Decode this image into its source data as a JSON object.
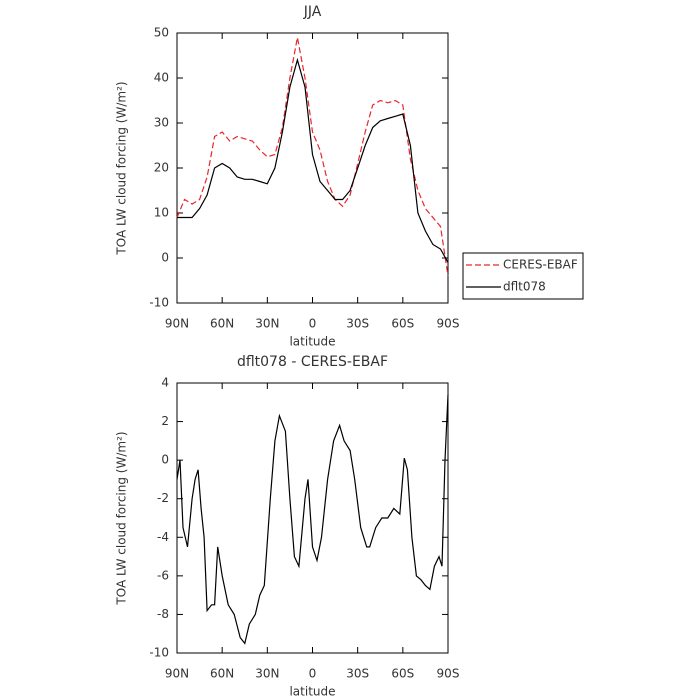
{
  "chart_data": [
    {
      "type": "line",
      "title": "JJA",
      "x_label": "latitude",
      "y_label": "TOA LW cloud forcing (W/m²)",
      "x": [
        90,
        85,
        80,
        75,
        70,
        65,
        60,
        55,
        50,
        45,
        40,
        35,
        30,
        25,
        20,
        15,
        10,
        5,
        0,
        -5,
        -10,
        -15,
        -20,
        -25,
        -30,
        -35,
        -40,
        -45,
        -50,
        -55,
        -60,
        -65,
        -70,
        -75,
        -80,
        -85,
        -90
      ],
      "series": [
        {
          "name": "CERES-EBAF",
          "color": "#e8262b",
          "dashed": true,
          "values": [
            9,
            13,
            12,
            13,
            18,
            27,
            28,
            26,
            27,
            26.5,
            26,
            24,
            22.5,
            23,
            29,
            40,
            49,
            40,
            28,
            24,
            17,
            13,
            11.5,
            14,
            21,
            28,
            34,
            35,
            34.5,
            35,
            34,
            22,
            15,
            11,
            9,
            7,
            -4
          ]
        },
        {
          "name": "dflt078",
          "color": "#000000",
          "dashed": false,
          "values": [
            9,
            9,
            9,
            11,
            14,
            20,
            21,
            20,
            18,
            17.5,
            17.5,
            17,
            16.5,
            20,
            28,
            38,
            44,
            38,
            23,
            17,
            15,
            13,
            13,
            15,
            20,
            25,
            29,
            30.5,
            31,
            31.5,
            32,
            25,
            10,
            6,
            3,
            2,
            -1
          ]
        }
      ],
      "xlim": [
        90,
        -90
      ],
      "xticks": [
        {
          "value": 90,
          "label": "90N"
        },
        {
          "value": 60,
          "label": "60N"
        },
        {
          "value": 30,
          "label": "30N"
        },
        0,
        {
          "value": -30,
          "label": "30S"
        },
        {
          "value": -60,
          "label": "60S"
        },
        {
          "value": -90,
          "label": "90S"
        }
      ],
      "ylim": [
        -10,
        50
      ],
      "yticks": [
        -10,
        0,
        10,
        20,
        30,
        40,
        50
      ],
      "legend": "right"
    },
    {
      "type": "line",
      "title": "dflt078 - CERES-EBAF",
      "x_label": "latitude",
      "y_label": "TOA LW cloud forcing (W/m²)",
      "x": [
        90,
        88,
        86,
        83,
        80,
        78,
        76,
        74,
        72,
        70,
        67,
        65,
        63,
        60,
        56,
        52,
        48,
        45,
        42,
        38,
        35,
        32,
        28,
        25,
        22,
        18,
        15,
        12,
        9,
        5,
        3,
        0,
        -3,
        -6,
        -10,
        -14,
        -18,
        -21,
        -25,
        -28,
        -32,
        -36,
        -38,
        -42,
        -46,
        -50,
        -54,
        -58,
        -61,
        -63,
        -66,
        -69,
        -72,
        -75,
        -78,
        -81,
        -84,
        -86,
        -88,
        -90
      ],
      "series": [
        {
          "color": "#000000",
          "dashed": false,
          "values": [
            -1,
            0,
            -3.5,
            -4.5,
            -2,
            -1,
            -0.5,
            -2.5,
            -4,
            -7.8,
            -7.5,
            -7.5,
            -4.5,
            -6,
            -7.5,
            -8,
            -9.2,
            -9.5,
            -8.5,
            -8,
            -7,
            -6.5,
            -2,
            1,
            2.3,
            1.5,
            -2,
            -5,
            -5.5,
            -2,
            -1,
            -4.5,
            -5.2,
            -4,
            -1,
            1,
            1.8,
            1,
            0.5,
            -1,
            -3.5,
            -4.5,
            -4.5,
            -3.5,
            -3,
            -3,
            -2.5,
            -2.8,
            0.1,
            -0.5,
            -4,
            -6,
            -6.2,
            -6.5,
            -6.7,
            -5.5,
            -5,
            -5.5,
            0,
            3.4
          ]
        }
      ],
      "xlim": [
        90,
        -90
      ],
      "xticks": [
        {
          "value": 90,
          "label": "90N"
        },
        {
          "value": 60,
          "label": "60N"
        },
        {
          "value": 30,
          "label": "30N"
        },
        0,
        {
          "value": -30,
          "label": "30S"
        },
        {
          "value": -60,
          "label": "60S"
        },
        {
          "value": -90,
          "label": "90S"
        }
      ],
      "ylim": [
        -10,
        4
      ],
      "yticks": [
        -10,
        -8,
        -6,
        -4,
        -2,
        0,
        2,
        4
      ]
    }
  ]
}
